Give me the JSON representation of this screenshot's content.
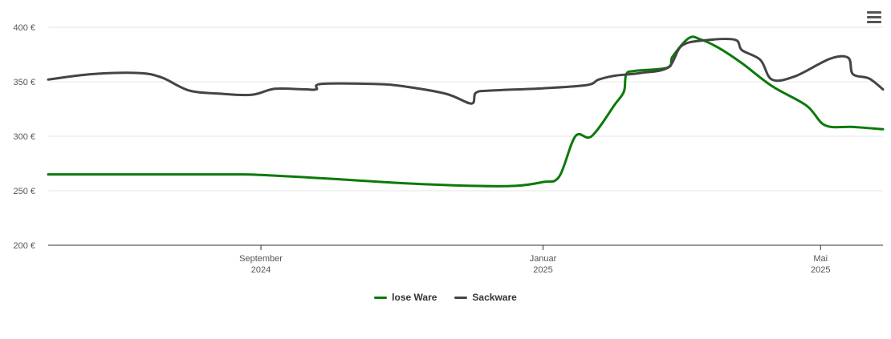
{
  "chart_data": {
    "type": "line",
    "title": "",
    "xlabel": "",
    "ylabel": "",
    "ylim": [
      200,
      400
    ],
    "y_ticks": [
      {
        "value": 200,
        "label": "200 €"
      },
      {
        "value": 250,
        "label": "250 €"
      },
      {
        "value": 300,
        "label": "300 €"
      },
      {
        "value": 350,
        "label": "350 €"
      },
      {
        "value": 400,
        "label": "400 €"
      }
    ],
    "xlim": [
      "2024-06-01",
      "2025-05-28"
    ],
    "x_ticks": [
      {
        "date": "2024-09-01",
        "line1": "September",
        "line2": "2024"
      },
      {
        "date": "2025-01-01",
        "line1": "Januar",
        "line2": "2025"
      },
      {
        "date": "2025-05-01",
        "line1": "Mai",
        "line2": "2025"
      }
    ],
    "grid": true,
    "legend_position": "bottom-center",
    "series": [
      {
        "name": "lose Ware",
        "color": "#0a7a0a",
        "points": [
          [
            "2024-06-01",
            265
          ],
          [
            "2024-07-15",
            265
          ],
          [
            "2024-08-20",
            265
          ],
          [
            "2024-09-01",
            264.5
          ],
          [
            "2024-10-01",
            261
          ],
          [
            "2024-11-01",
            257
          ],
          [
            "2024-12-01",
            254.5
          ],
          [
            "2024-12-20",
            254.5
          ],
          [
            "2025-01-01",
            258
          ],
          [
            "2025-01-08",
            263
          ],
          [
            "2025-01-15",
            300
          ],
          [
            "2025-01-22",
            300
          ],
          [
            "2025-02-01",
            329
          ],
          [
            "2025-02-05",
            341
          ],
          [
            "2025-02-06",
            357
          ],
          [
            "2025-02-10",
            360
          ],
          [
            "2025-02-24",
            363
          ],
          [
            "2025-02-26",
            373
          ],
          [
            "2025-03-05",
            390
          ],
          [
            "2025-03-10",
            389
          ],
          [
            "2025-03-18",
            381
          ],
          [
            "2025-03-28",
            367
          ],
          [
            "2025-04-10",
            346
          ],
          [
            "2025-04-25",
            328
          ],
          [
            "2025-05-03",
            310
          ],
          [
            "2025-05-15",
            308.5
          ],
          [
            "2025-05-28",
            306.5
          ]
        ]
      },
      {
        "name": "Sackware",
        "color": "#444444",
        "points": [
          [
            "2024-06-01",
            352
          ],
          [
            "2024-06-20",
            357
          ],
          [
            "2024-07-10",
            358
          ],
          [
            "2024-07-20",
            354
          ],
          [
            "2024-08-01",
            342
          ],
          [
            "2024-08-15",
            339
          ],
          [
            "2024-08-28",
            338
          ],
          [
            "2024-09-07",
            343.5
          ],
          [
            "2024-09-20",
            343
          ],
          [
            "2024-09-25",
            343
          ],
          [
            "2024-09-27",
            348
          ],
          [
            "2024-10-20",
            348
          ],
          [
            "2024-11-01",
            346
          ],
          [
            "2024-11-20",
            339
          ],
          [
            "2024-12-01",
            330
          ],
          [
            "2024-12-03",
            340
          ],
          [
            "2024-12-10",
            342
          ],
          [
            "2025-01-01",
            344
          ],
          [
            "2025-01-20",
            347
          ],
          [
            "2025-01-25",
            352
          ],
          [
            "2025-02-01",
            355.5
          ],
          [
            "2025-02-12",
            358
          ],
          [
            "2025-02-24",
            363
          ],
          [
            "2025-03-02",
            383
          ],
          [
            "2025-03-12",
            388
          ],
          [
            "2025-03-25",
            388.5
          ],
          [
            "2025-03-28",
            379
          ],
          [
            "2025-04-05",
            370
          ],
          [
            "2025-04-10",
            352
          ],
          [
            "2025-04-20",
            355
          ],
          [
            "2025-05-05",
            371
          ],
          [
            "2025-05-13",
            372
          ],
          [
            "2025-05-15",
            357
          ],
          [
            "2025-05-22",
            353
          ],
          [
            "2025-05-28",
            343
          ]
        ]
      }
    ]
  },
  "menu": {
    "icon": "hamburger-menu-icon"
  }
}
